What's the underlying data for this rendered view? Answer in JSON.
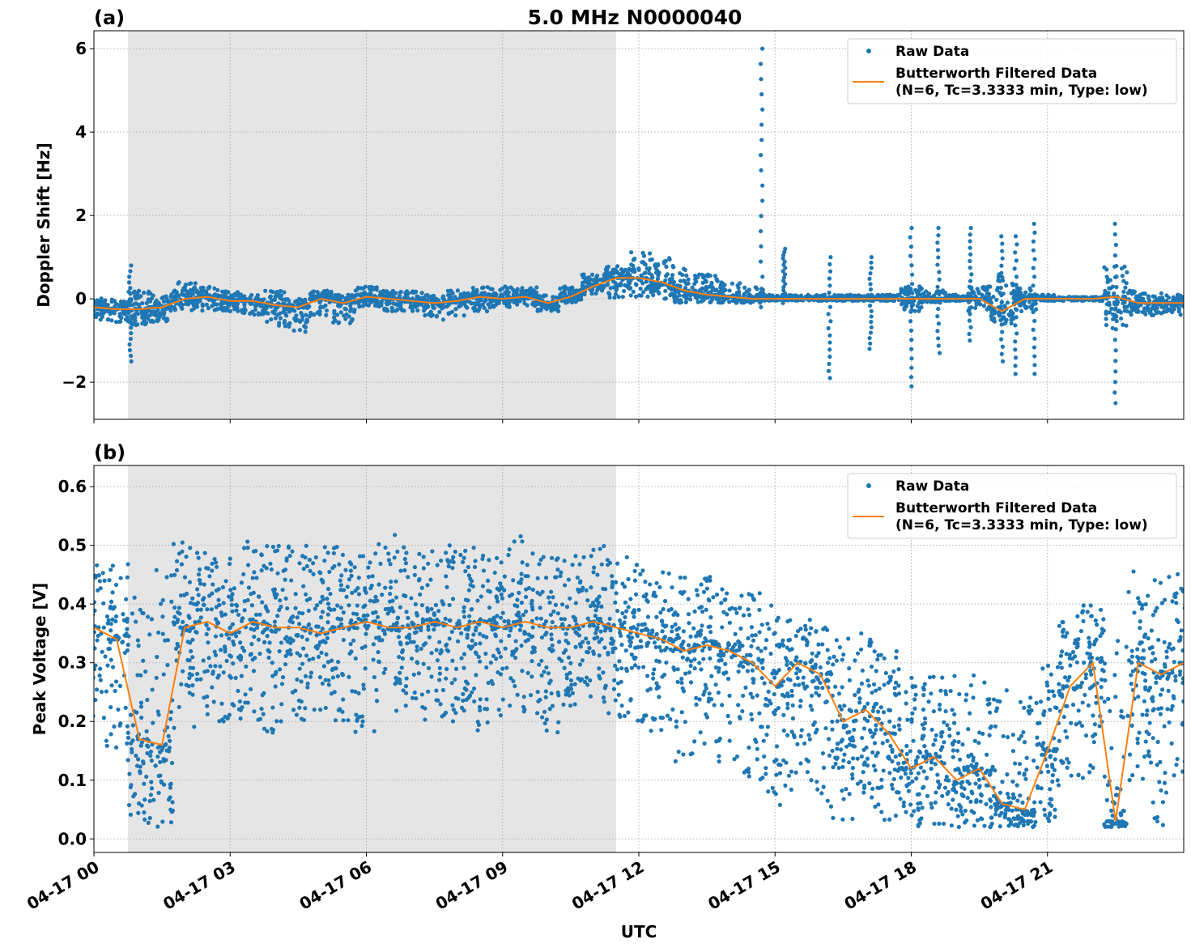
{
  "figure": {
    "title": "5.0 MHz N0000040",
    "xlabel": "UTC"
  },
  "colors": {
    "raw": "#1f77b4",
    "filtered": "#ff7f0e",
    "shade": "#e5e5e5",
    "grid": "#b0b0b0"
  },
  "chart_data": [
    {
      "type": "scatter+line",
      "panel_label": "(a)",
      "ylabel": "Doppler Shift [Hz]",
      "xlim_hours": [
        0,
        24
      ],
      "ylim": [
        -2.89,
        6.43
      ],
      "xticks": [
        "04-17 00",
        "04-17 03",
        "04-17 06",
        "04-17 09",
        "04-17 12",
        "04-17 15",
        "04-17 18",
        "04-17 21"
      ],
      "xtick_hours": [
        0,
        3,
        6,
        9,
        12,
        15,
        18,
        21
      ],
      "yticks": [
        -2,
        0,
        2,
        4,
        6
      ],
      "ytick_labels": [
        "−2",
        "0",
        "2",
        "4",
        "6"
      ],
      "grid": true,
      "shaded_region_hours": [
        0.75,
        11.5
      ],
      "legend": {
        "placement": "top-right",
        "entries": [
          "Raw Data",
          "Butterworth Filtered Data",
          "(N=6, Tc=3.3333 min, Type: low)"
        ]
      },
      "filtered": {
        "t_hours_step": 0.5,
        "values": [
          -0.2,
          -0.25,
          -0.25,
          -0.2,
          0.0,
          0.05,
          -0.05,
          -0.05,
          -0.15,
          -0.2,
          0.0,
          -0.1,
          0.05,
          0.0,
          -0.05,
          -0.1,
          -0.05,
          0.05,
          0.0,
          0.05,
          -0.1,
          0.05,
          0.3,
          0.5,
          0.5,
          0.4,
          0.2,
          0.1,
          0.05,
          0.0,
          0.0,
          0.0,
          0.0,
          0.0,
          0.0,
          0.0,
          0.0,
          0.0,
          0.0,
          0.0,
          -0.3,
          0.0,
          0.0,
          0.0,
          0.0,
          0.05,
          -0.1,
          -0.1,
          -0.1
        ]
      },
      "raw_envelope": {
        "t_hours_step": 0.5,
        "low": [
          -0.5,
          -0.6,
          -0.7,
          -0.6,
          -0.3,
          -0.3,
          -0.3,
          -0.4,
          -0.7,
          -0.8,
          -0.4,
          -0.6,
          -0.2,
          -0.3,
          -0.3,
          -0.5,
          -0.4,
          -0.3,
          -0.2,
          -0.2,
          -0.3,
          -0.1,
          0.1,
          0.0,
          0.0,
          0.0,
          -0.1,
          -0.1,
          -0.1,
          -0.1,
          -0.05,
          -0.05,
          -0.05,
          -0.05,
          -0.05,
          -0.05,
          -0.3,
          -0.1,
          -0.05,
          -0.3,
          -0.6,
          -0.3,
          -0.05,
          -0.05,
          -0.05,
          -0.8,
          -0.4,
          -0.4,
          -0.4
        ],
        "high": [
          0.1,
          0.0,
          0.2,
          0.2,
          0.4,
          0.3,
          0.2,
          0.1,
          0.2,
          0.0,
          0.2,
          0.1,
          0.3,
          0.2,
          0.2,
          0.1,
          0.2,
          0.3,
          0.3,
          0.3,
          0.1,
          0.3,
          0.6,
          0.8,
          1.2,
          1.0,
          0.8,
          0.6,
          0.4,
          0.3,
          0.1,
          0.1,
          0.1,
          0.1,
          0.1,
          0.1,
          0.3,
          0.2,
          0.1,
          0.3,
          0.6,
          0.3,
          0.1,
          0.05,
          0.05,
          0.8,
          0.2,
          0.2,
          0.1
        ]
      },
      "raw_spikes": [
        {
          "t": 0.8,
          "low": -1.5,
          "high": 0.8
        },
        {
          "t": 14.7,
          "low": -0.2,
          "high": 6.0
        },
        {
          "t": 15.2,
          "low": -0.1,
          "high": 1.2
        },
        {
          "t": 16.2,
          "low": -1.9,
          "high": 1.0
        },
        {
          "t": 17.1,
          "low": -1.2,
          "high": 1.0
        },
        {
          "t": 18.0,
          "low": -2.1,
          "high": 1.7
        },
        {
          "t": 18.6,
          "low": -1.3,
          "high": 1.7
        },
        {
          "t": 19.3,
          "low": -1.0,
          "high": 1.7
        },
        {
          "t": 20.0,
          "low": -1.5,
          "high": 1.5
        },
        {
          "t": 20.3,
          "low": -1.8,
          "high": 1.5
        },
        {
          "t": 20.7,
          "low": -1.8,
          "high": 1.8
        },
        {
          "t": 22.5,
          "low": -2.5,
          "high": 1.8
        }
      ]
    },
    {
      "type": "scatter+line",
      "panel_label": "(b)",
      "ylabel": "Peak Voltage [V]",
      "xlim_hours": [
        0,
        24
      ],
      "ylim": [
        -0.023,
        0.636
      ],
      "xticks": [
        "04-17 00",
        "04-17 03",
        "04-17 06",
        "04-17 09",
        "04-17 12",
        "04-17 15",
        "04-17 18",
        "04-17 21"
      ],
      "xtick_hours": [
        0,
        3,
        6,
        9,
        12,
        15,
        18,
        21
      ],
      "yticks": [
        0.0,
        0.1,
        0.2,
        0.3,
        0.4,
        0.5,
        0.6
      ],
      "ytick_labels": [
        "0.0",
        "0.1",
        "0.2",
        "0.3",
        "0.4",
        "0.5",
        "0.6"
      ],
      "grid": true,
      "shaded_region_hours": [
        0.75,
        11.5
      ],
      "legend": {
        "placement": "top-right",
        "entries": [
          "Raw Data",
          "Butterworth Filtered Data",
          "(N=6, Tc=3.3333 min, Type: low)"
        ]
      },
      "filtered": {
        "t_hours_step": 0.5,
        "values": [
          0.36,
          0.34,
          0.17,
          0.16,
          0.36,
          0.37,
          0.35,
          0.37,
          0.36,
          0.36,
          0.35,
          0.36,
          0.37,
          0.36,
          0.36,
          0.37,
          0.36,
          0.37,
          0.36,
          0.37,
          0.36,
          0.36,
          0.37,
          0.36,
          0.35,
          0.34,
          0.32,
          0.33,
          0.32,
          0.3,
          0.26,
          0.3,
          0.28,
          0.2,
          0.22,
          0.18,
          0.12,
          0.14,
          0.1,
          0.12,
          0.06,
          0.05,
          0.15,
          0.26,
          0.3,
          0.03,
          0.3,
          0.28,
          0.3
        ]
      },
      "raw_envelope": {
        "t_hours_step": 0.5,
        "low": [
          0.2,
          0.15,
          0.02,
          0.02,
          0.18,
          0.2,
          0.2,
          0.2,
          0.18,
          0.2,
          0.2,
          0.2,
          0.18,
          0.2,
          0.2,
          0.2,
          0.2,
          0.18,
          0.2,
          0.2,
          0.18,
          0.2,
          0.22,
          0.2,
          0.2,
          0.18,
          0.12,
          0.15,
          0.12,
          0.1,
          0.05,
          0.08,
          0.05,
          0.03,
          0.03,
          0.03,
          0.02,
          0.02,
          0.02,
          0.02,
          0.02,
          0.02,
          0.03,
          0.1,
          0.1,
          0.02,
          0.1,
          0.02,
          0.1
        ],
        "high": [
          0.48,
          0.47,
          0.47,
          0.48,
          0.52,
          0.5,
          0.5,
          0.52,
          0.5,
          0.5,
          0.5,
          0.5,
          0.5,
          0.52,
          0.5,
          0.5,
          0.5,
          0.5,
          0.5,
          0.52,
          0.5,
          0.52,
          0.5,
          0.48,
          0.47,
          0.46,
          0.45,
          0.45,
          0.43,
          0.42,
          0.4,
          0.38,
          0.38,
          0.35,
          0.35,
          0.32,
          0.28,
          0.28,
          0.28,
          0.28,
          0.27,
          0.25,
          0.3,
          0.38,
          0.4,
          0.42,
          0.46,
          0.47,
          0.46
        ]
      }
    }
  ]
}
